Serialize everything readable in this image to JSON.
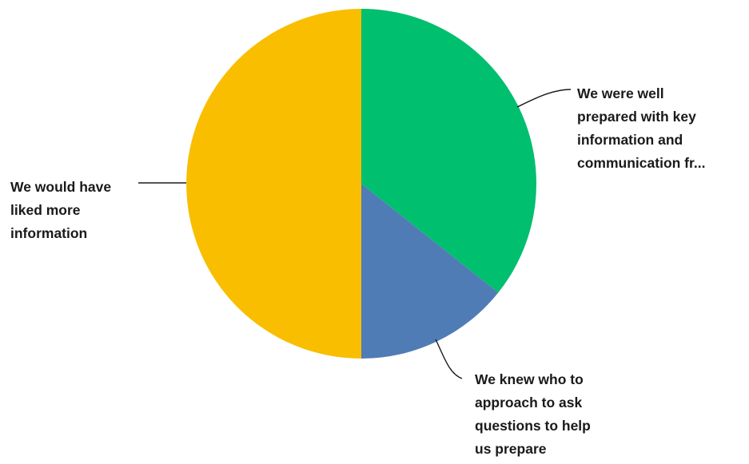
{
  "chart_data": {
    "type": "pie",
    "title": "",
    "legend": "none",
    "slices": [
      {
        "label_lines": [
          "We were well",
          "prepared with key",
          "information and",
          "communication fr..."
        ],
        "value": 35.7,
        "color": "#00BF6F"
      },
      {
        "label_lines": [
          "We knew who to",
          "approach to ask",
          "questions to help",
          "us prepare"
        ],
        "value": 14.3,
        "color": "#507CB6"
      },
      {
        "label_lines": [
          "We would have",
          "liked more",
          "information"
        ],
        "value": 50.0,
        "color": "#F9BE00"
      }
    ]
  }
}
